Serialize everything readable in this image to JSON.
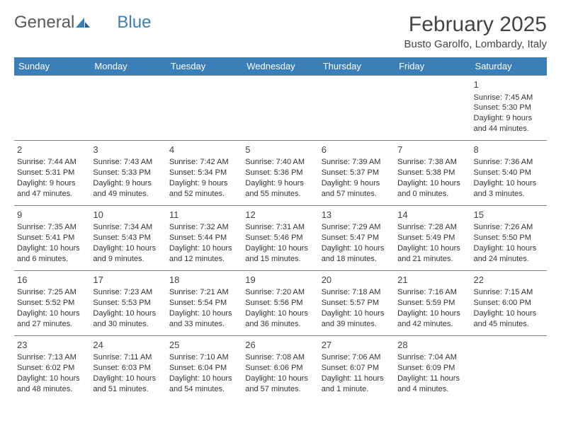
{
  "logo": {
    "part1": "General",
    "part2": "Blue"
  },
  "title": "February 2025",
  "location": "Busto Garolfo, Lombardy, Italy",
  "colors": {
    "header_bg": "#3b7fb8",
    "header_fg": "#ffffff",
    "border": "#888888",
    "text": "#333333",
    "title": "#444444",
    "logo_gray": "#5a5a5a",
    "logo_blue": "#3b7fb8",
    "page_bg": "#ffffff"
  },
  "weekdays": [
    "Sunday",
    "Monday",
    "Tuesday",
    "Wednesday",
    "Thursday",
    "Friday",
    "Saturday"
  ],
  "weeks": [
    [
      null,
      null,
      null,
      null,
      null,
      null,
      {
        "n": "1",
        "sr": "Sunrise: 7:45 AM",
        "ss": "Sunset: 5:30 PM",
        "d1": "Daylight: 9 hours",
        "d2": "and 44 minutes."
      }
    ],
    [
      {
        "n": "2",
        "sr": "Sunrise: 7:44 AM",
        "ss": "Sunset: 5:31 PM",
        "d1": "Daylight: 9 hours",
        "d2": "and 47 minutes."
      },
      {
        "n": "3",
        "sr": "Sunrise: 7:43 AM",
        "ss": "Sunset: 5:33 PM",
        "d1": "Daylight: 9 hours",
        "d2": "and 49 minutes."
      },
      {
        "n": "4",
        "sr": "Sunrise: 7:42 AM",
        "ss": "Sunset: 5:34 PM",
        "d1": "Daylight: 9 hours",
        "d2": "and 52 minutes."
      },
      {
        "n": "5",
        "sr": "Sunrise: 7:40 AM",
        "ss": "Sunset: 5:36 PM",
        "d1": "Daylight: 9 hours",
        "d2": "and 55 minutes."
      },
      {
        "n": "6",
        "sr": "Sunrise: 7:39 AM",
        "ss": "Sunset: 5:37 PM",
        "d1": "Daylight: 9 hours",
        "d2": "and 57 minutes."
      },
      {
        "n": "7",
        "sr": "Sunrise: 7:38 AM",
        "ss": "Sunset: 5:38 PM",
        "d1": "Daylight: 10 hours",
        "d2": "and 0 minutes."
      },
      {
        "n": "8",
        "sr": "Sunrise: 7:36 AM",
        "ss": "Sunset: 5:40 PM",
        "d1": "Daylight: 10 hours",
        "d2": "and 3 minutes."
      }
    ],
    [
      {
        "n": "9",
        "sr": "Sunrise: 7:35 AM",
        "ss": "Sunset: 5:41 PM",
        "d1": "Daylight: 10 hours",
        "d2": "and 6 minutes."
      },
      {
        "n": "10",
        "sr": "Sunrise: 7:34 AM",
        "ss": "Sunset: 5:43 PM",
        "d1": "Daylight: 10 hours",
        "d2": "and 9 minutes."
      },
      {
        "n": "11",
        "sr": "Sunrise: 7:32 AM",
        "ss": "Sunset: 5:44 PM",
        "d1": "Daylight: 10 hours",
        "d2": "and 12 minutes."
      },
      {
        "n": "12",
        "sr": "Sunrise: 7:31 AM",
        "ss": "Sunset: 5:46 PM",
        "d1": "Daylight: 10 hours",
        "d2": "and 15 minutes."
      },
      {
        "n": "13",
        "sr": "Sunrise: 7:29 AM",
        "ss": "Sunset: 5:47 PM",
        "d1": "Daylight: 10 hours",
        "d2": "and 18 minutes."
      },
      {
        "n": "14",
        "sr": "Sunrise: 7:28 AM",
        "ss": "Sunset: 5:49 PM",
        "d1": "Daylight: 10 hours",
        "d2": "and 21 minutes."
      },
      {
        "n": "15",
        "sr": "Sunrise: 7:26 AM",
        "ss": "Sunset: 5:50 PM",
        "d1": "Daylight: 10 hours",
        "d2": "and 24 minutes."
      }
    ],
    [
      {
        "n": "16",
        "sr": "Sunrise: 7:25 AM",
        "ss": "Sunset: 5:52 PM",
        "d1": "Daylight: 10 hours",
        "d2": "and 27 minutes."
      },
      {
        "n": "17",
        "sr": "Sunrise: 7:23 AM",
        "ss": "Sunset: 5:53 PM",
        "d1": "Daylight: 10 hours",
        "d2": "and 30 minutes."
      },
      {
        "n": "18",
        "sr": "Sunrise: 7:21 AM",
        "ss": "Sunset: 5:54 PM",
        "d1": "Daylight: 10 hours",
        "d2": "and 33 minutes."
      },
      {
        "n": "19",
        "sr": "Sunrise: 7:20 AM",
        "ss": "Sunset: 5:56 PM",
        "d1": "Daylight: 10 hours",
        "d2": "and 36 minutes."
      },
      {
        "n": "20",
        "sr": "Sunrise: 7:18 AM",
        "ss": "Sunset: 5:57 PM",
        "d1": "Daylight: 10 hours",
        "d2": "and 39 minutes."
      },
      {
        "n": "21",
        "sr": "Sunrise: 7:16 AM",
        "ss": "Sunset: 5:59 PM",
        "d1": "Daylight: 10 hours",
        "d2": "and 42 minutes."
      },
      {
        "n": "22",
        "sr": "Sunrise: 7:15 AM",
        "ss": "Sunset: 6:00 PM",
        "d1": "Daylight: 10 hours",
        "d2": "and 45 minutes."
      }
    ],
    [
      {
        "n": "23",
        "sr": "Sunrise: 7:13 AM",
        "ss": "Sunset: 6:02 PM",
        "d1": "Daylight: 10 hours",
        "d2": "and 48 minutes."
      },
      {
        "n": "24",
        "sr": "Sunrise: 7:11 AM",
        "ss": "Sunset: 6:03 PM",
        "d1": "Daylight: 10 hours",
        "d2": "and 51 minutes."
      },
      {
        "n": "25",
        "sr": "Sunrise: 7:10 AM",
        "ss": "Sunset: 6:04 PM",
        "d1": "Daylight: 10 hours",
        "d2": "and 54 minutes."
      },
      {
        "n": "26",
        "sr": "Sunrise: 7:08 AM",
        "ss": "Sunset: 6:06 PM",
        "d1": "Daylight: 10 hours",
        "d2": "and 57 minutes."
      },
      {
        "n": "27",
        "sr": "Sunrise: 7:06 AM",
        "ss": "Sunset: 6:07 PM",
        "d1": "Daylight: 11 hours",
        "d2": "and 1 minute."
      },
      {
        "n": "28",
        "sr": "Sunrise: 7:04 AM",
        "ss": "Sunset: 6:09 PM",
        "d1": "Daylight: 11 hours",
        "d2": "and 4 minutes."
      },
      null
    ]
  ]
}
